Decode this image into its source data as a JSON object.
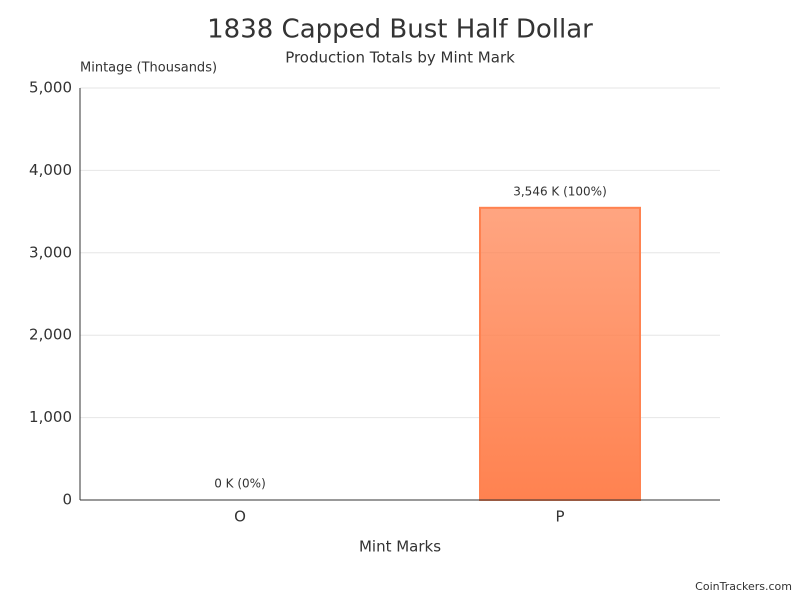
{
  "chart_data": {
    "type": "bar",
    "title": "1838 Capped Bust Half Dollar",
    "subtitle": "Production Totals by Mint Mark",
    "y_label": "Mintage (Thousands)",
    "x_label": "Mint Marks",
    "credits": "CoinTrackers.com",
    "categories": [
      "O",
      "P"
    ],
    "values": [
      0,
      3546
    ],
    "value_labels": [
      "0 K (0%)",
      "3,546 K (100%)"
    ],
    "colors": [
      "#2e6e9e",
      "#ff8250"
    ],
    "ylim": [
      0,
      5000
    ],
    "yticks": [
      0,
      {
        "value": 1000,
        "label": "1,000"
      },
      {
        "value": 2000,
        "label": "2,000"
      },
      {
        "value": 3000,
        "label": "3,000"
      },
      {
        "value": 4000,
        "label": "4,000"
      },
      {
        "value": 5000,
        "label": "5,000"
      }
    ],
    "grid": true
  }
}
